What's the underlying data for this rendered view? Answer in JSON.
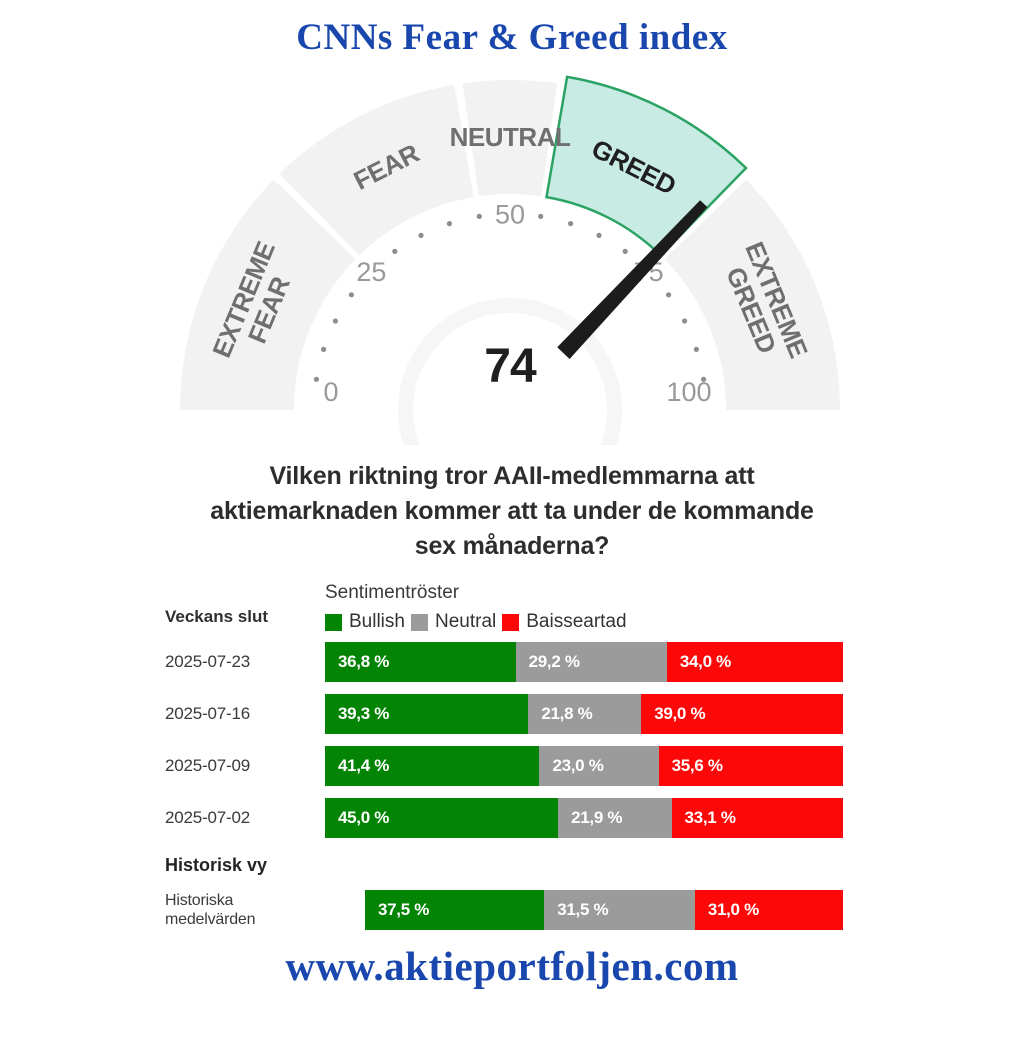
{
  "header": {
    "title": "CNNs Fear & Greed index"
  },
  "question": {
    "lines": [
      "Vilken riktning tror AAII-medlemmarna att",
      "aktiemarknaden kommer att ta under de kommande",
      "sex månaderna?"
    ]
  },
  "footer": {
    "url": "www.aktieportfoljen.com"
  },
  "chart_data": [
    {
      "type": "gauge",
      "title": "CNN Fear & Greed index gauge",
      "value": 74,
      "min": 0,
      "max": 100,
      "tick_label_values": [
        0,
        25,
        50,
        75,
        100
      ],
      "dot_step": 5,
      "segments": [
        {
          "label": "EXTREME FEAR",
          "from": 0,
          "to": 25,
          "active": false
        },
        {
          "label": "FEAR",
          "from": 25,
          "to": 45,
          "active": false
        },
        {
          "label": "NEUTRAL",
          "from": 45,
          "to": 55,
          "active": false
        },
        {
          "label": "GREED",
          "from": 55,
          "to": 75,
          "active": true
        },
        {
          "label": "EXTREME GREED",
          "from": 75,
          "to": 100,
          "active": false
        }
      ],
      "colors": {
        "segment_fill": "#f2f2f3",
        "active_fill": "#c8ebe3",
        "active_stroke": "#2ba364",
        "label": "#6f6f6f",
        "active_label": "#1f1f1f",
        "ticks": "#999999",
        "dots": "#8d8d8d",
        "needle": "#1c1c1c",
        "value_text": "#1f1f1f"
      }
    },
    {
      "type": "bar",
      "subtype": "stacked_horizontal",
      "title": "Sentimentröster",
      "legend_position": "top",
      "series": [
        "Bullish",
        "Neutral",
        "Baisseartad"
      ],
      "series_colors": [
        "#048404",
        "#9b9b9b",
        "#fd0808"
      ],
      "section_weekly_label": "Veckans slut",
      "rows": [
        {
          "label": "2025-07-23",
          "values": [
            36.8,
            29.2,
            34.0
          ],
          "display": [
            "36,8 %",
            "29,2 %",
            "34,0 %"
          ]
        },
        {
          "label": "2025-07-16",
          "values": [
            39.3,
            21.8,
            39.0
          ],
          "display": [
            "39,3 %",
            "21,8 %",
            "39,0 %"
          ]
        },
        {
          "label": "2025-07-09",
          "values": [
            41.4,
            23.0,
            35.6
          ],
          "display": [
            "41,4 %",
            "23,0 %",
            "35,6 %"
          ]
        },
        {
          "label": "2025-07-02",
          "values": [
            45.0,
            21.9,
            33.1
          ],
          "display": [
            "45,0 %",
            "21,9 %",
            "33,1 %"
          ]
        }
      ],
      "section_history_label": "Historisk vy",
      "history_rows": [
        {
          "label": "Historiska medelvärden",
          "values": [
            37.5,
            31.5,
            31.0
          ],
          "display": [
            "37,5 %",
            "31,5 %",
            "31,0 %"
          ]
        }
      ]
    }
  ]
}
